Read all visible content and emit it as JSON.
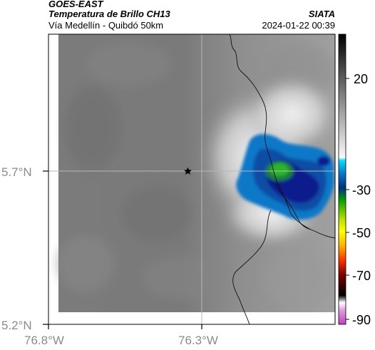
{
  "header": {
    "satellite": "GOES-EAST",
    "product": "Temperatura de Brillo CH13",
    "route": "Vía Medellín - Quibdó 50km",
    "brand": "SIATA",
    "datetime": "2024-01-22 00:39"
  },
  "map": {
    "latitude_ticks": [
      "5.7°N",
      "5.2°N"
    ],
    "longitude_ticks": [
      "76.8°W",
      "76.3°W"
    ],
    "marker": {
      "icon": "star-icon"
    }
  },
  "colorbar": {
    "labels": [
      "20",
      "-30",
      "-50",
      "-70",
      "-90"
    ]
  },
  "colors": {
    "cloud_gray": "#7f7f7f",
    "cold_top_blue": "#0a78c8",
    "core_green": "#22b022",
    "deep_navy": "#0f1f8c"
  }
}
